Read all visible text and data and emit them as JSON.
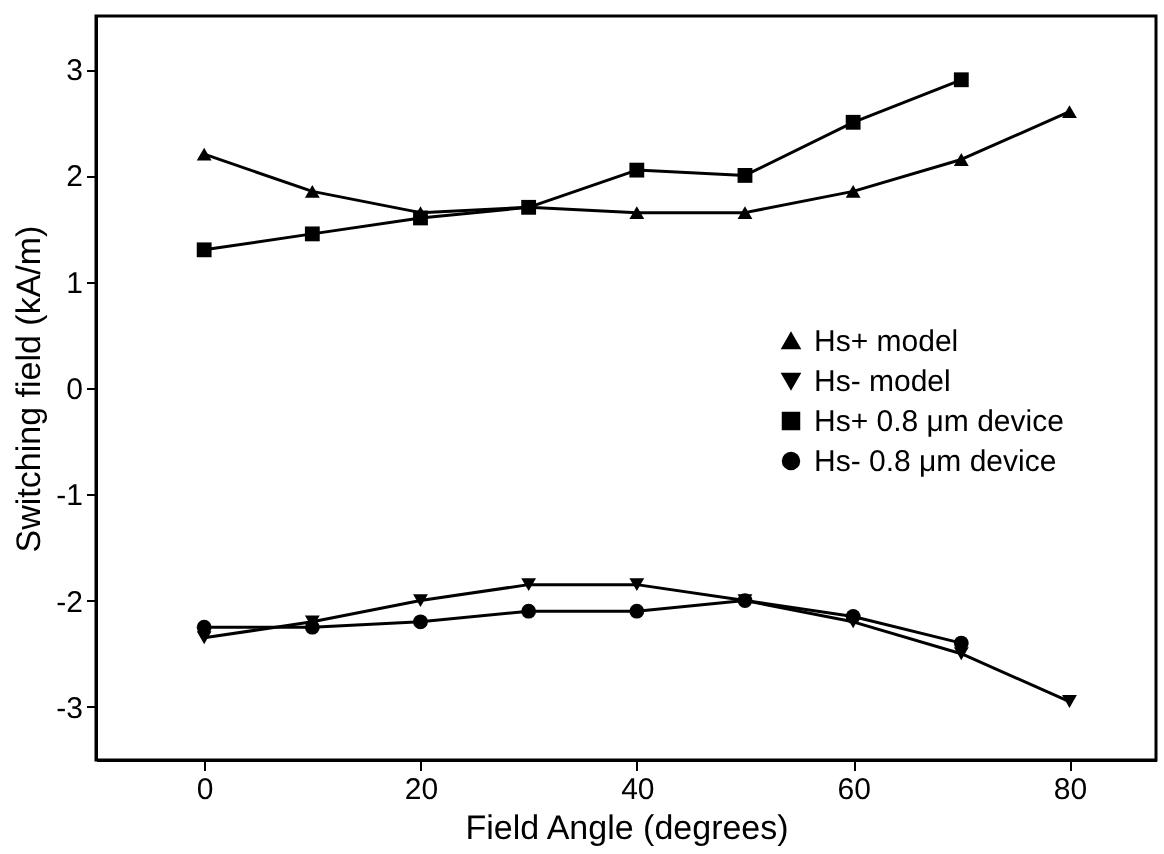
{
  "chart_data": {
    "type": "line",
    "xlabel": "Field Angle (degrees)",
    "ylabel": "Switching field (kA/m)",
    "xlim": [
      -10,
      88
    ],
    "xticks": [
      0,
      20,
      40,
      60,
      80
    ],
    "ylim": [
      -3.5,
      3.5
    ],
    "yticks": [
      -3,
      -2,
      -1,
      0,
      1,
      2,
      3
    ],
    "grid": false,
    "legend": "right",
    "line_style": "solid",
    "series": [
      {
        "name": "Hs+ model",
        "color": "#000000",
        "marker": "triangle",
        "x": [
          0,
          10,
          20,
          30,
          40,
          50,
          60,
          70,
          80
        ],
        "values": [
          2.2,
          1.85,
          1.65,
          1.7,
          1.65,
          1.65,
          1.85,
          2.15,
          2.6
        ]
      },
      {
        "name": "Hs- model",
        "color": "#000000",
        "marker": "triangle-down",
        "x": [
          0,
          10,
          20,
          30,
          40,
          50,
          60,
          70,
          80
        ],
        "values": [
          -2.35,
          -2.2,
          -2.0,
          -1.85,
          -1.85,
          -2.0,
          -2.2,
          -2.5,
          -2.95
        ]
      },
      {
        "name": "Hs+ 0.8 μm device",
        "color": "#000000",
        "marker": "square",
        "x": [
          0,
          10,
          20,
          30,
          40,
          50,
          60,
          70
        ],
        "values": [
          1.3,
          1.45,
          1.6,
          1.7,
          2.05,
          2.0,
          2.5,
          2.9
        ]
      },
      {
        "name": "Hs- 0.8 μm device",
        "color": "#000000",
        "marker": "circle",
        "x": [
          0,
          10,
          20,
          30,
          40,
          50,
          60,
          70
        ],
        "values": [
          -2.25,
          -2.25,
          -2.2,
          -2.1,
          -2.1,
          -2.0,
          -2.15,
          -2.4
        ]
      }
    ]
  }
}
